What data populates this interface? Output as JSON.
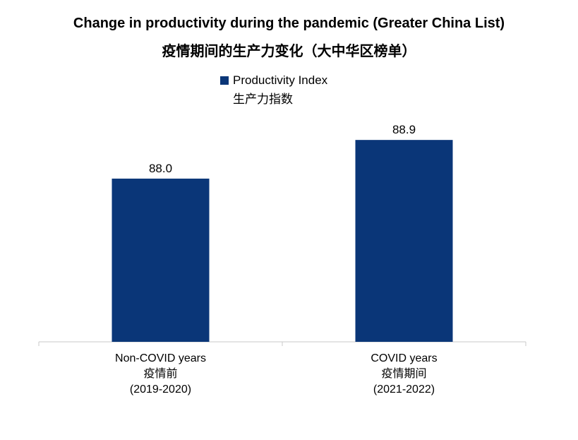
{
  "chart_data": {
    "type": "bar",
    "title": "Change in productivity during the pandemic (Greater China List)",
    "subtitle": "疫情期间的生产力变化（大中华区榜单）",
    "categories": [
      [
        "Non-COVID years",
        "疫情前",
        "(2019-2020)"
      ],
      [
        "COVID years",
        "疫情期间",
        "(2021-2022)"
      ]
    ],
    "series": [
      {
        "name": "Productivity Index",
        "name_zh": "生产力指数",
        "values": [
          88.0,
          88.9
        ],
        "labels": [
          "88.0",
          "88.9"
        ],
        "color": "#0a3678"
      }
    ],
    "ylim": [
      84.2,
      89.1
    ],
    "legend": "top-center",
    "grid": false
  }
}
